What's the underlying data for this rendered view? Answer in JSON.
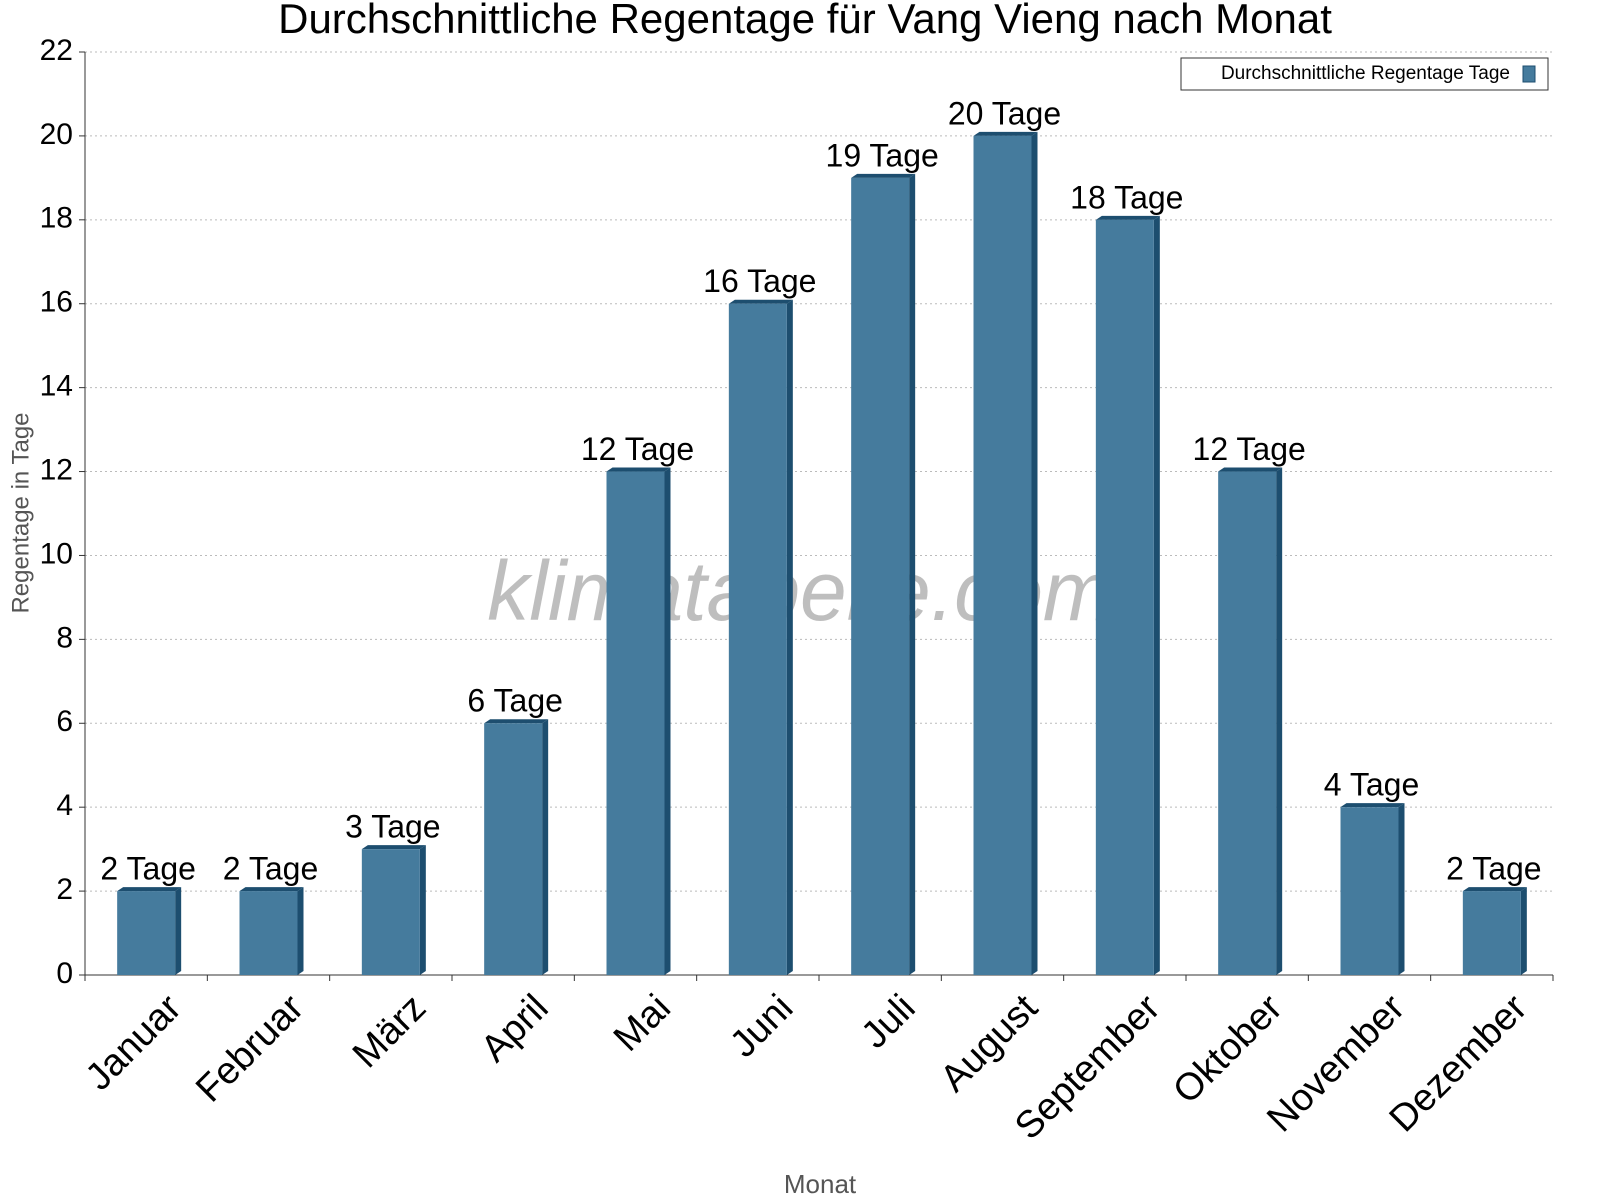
{
  "chart_data": {
    "type": "bar",
    "title": "Durchschnittliche Regentage für Vang Vieng nach Monat",
    "x_label": "Monat",
    "y_label": "Regentage in Tage",
    "watermark": "klimatabelle.com",
    "categories": [
      "Januar",
      "Februar",
      "März",
      "April",
      "Mai",
      "Juni",
      "Juli",
      "August",
      "September",
      "Oktober",
      "November",
      "Dezember"
    ],
    "series": [
      {
        "name": "Durchschnittliche Regentage Tage",
        "color": "#457b9d",
        "values": [
          2,
          2,
          3,
          6,
          12,
          16,
          19,
          20,
          18,
          12,
          4,
          2
        ],
        "value_labels": [
          "2 Tage",
          "2 Tage",
          "3 Tage",
          "6 Tage",
          "12 Tage",
          "16 Tage",
          "19 Tage",
          "20 Tage",
          "18 Tage",
          "12 Tage",
          "4 Tage",
          "2 Tage"
        ]
      }
    ],
    "ylim": [
      0,
      22
    ],
    "yticks": [
      0,
      2,
      4,
      6,
      8,
      10,
      12,
      14,
      16,
      18,
      20,
      22
    ],
    "grid": true,
    "legend": "upper right"
  }
}
